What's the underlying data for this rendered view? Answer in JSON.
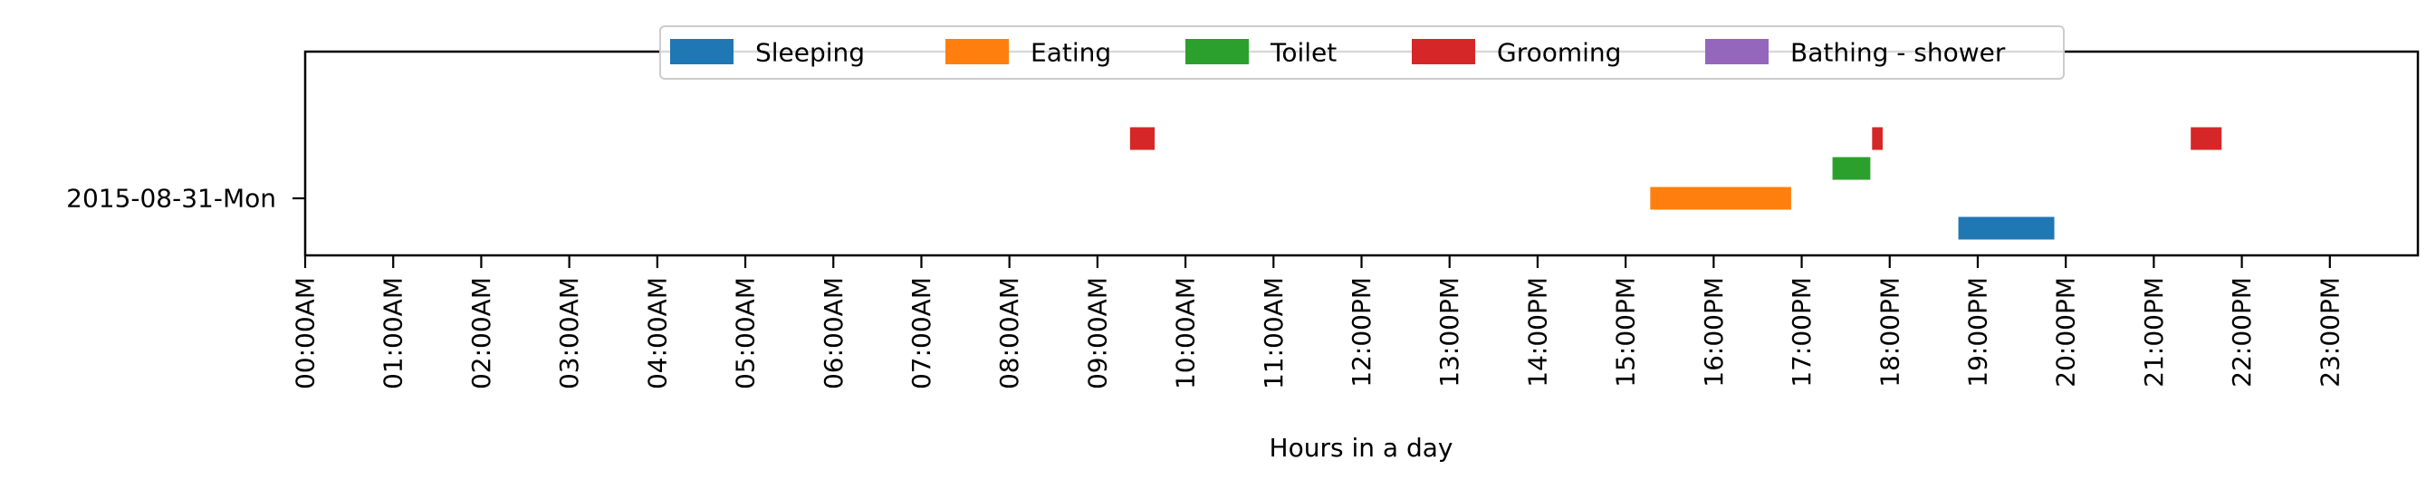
{
  "chart_data": {
    "type": "timeline",
    "xlabel": "Hours in a day",
    "xlim": [
      0,
      24
    ],
    "x_ticks": [
      {
        "value": 0,
        "label": "00:00AM"
      },
      {
        "value": 1,
        "label": "01:00AM"
      },
      {
        "value": 2,
        "label": "02:00AM"
      },
      {
        "value": 3,
        "label": "03:00AM"
      },
      {
        "value": 4,
        "label": "04:00AM"
      },
      {
        "value": 5,
        "label": "05:00AM"
      },
      {
        "value": 6,
        "label": "06:00AM"
      },
      {
        "value": 7,
        "label": "07:00AM"
      },
      {
        "value": 8,
        "label": "08:00AM"
      },
      {
        "value": 9,
        "label": "09:00AM"
      },
      {
        "value": 10,
        "label": "10:00AM"
      },
      {
        "value": 11,
        "label": "11:00AM"
      },
      {
        "value": 12,
        "label": "12:00PM"
      },
      {
        "value": 13,
        "label": "13:00PM"
      },
      {
        "value": 14,
        "label": "14:00PM"
      },
      {
        "value": 15,
        "label": "15:00PM"
      },
      {
        "value": 16,
        "label": "16:00PM"
      },
      {
        "value": 17,
        "label": "17:00PM"
      },
      {
        "value": 18,
        "label": "18:00PM"
      },
      {
        "value": 19,
        "label": "19:00PM"
      },
      {
        "value": 20,
        "label": "20:00PM"
      },
      {
        "value": 21,
        "label": "21:00PM"
      },
      {
        "value": 22,
        "label": "22:00PM"
      },
      {
        "value": 23,
        "label": "23:00PM"
      }
    ],
    "days": [
      "2015-08-31-Mon"
    ],
    "legend": {
      "placement": "upper-center",
      "ncol": 5
    },
    "series": [
      {
        "name": "Sleeping",
        "color": "#1f77b4",
        "intervals": [
          [
            18.78,
            19.87
          ]
        ]
      },
      {
        "name": "Eating",
        "color": "#ff7f0e",
        "intervals": [
          [
            15.28,
            16.88
          ]
        ]
      },
      {
        "name": "Toilet",
        "color": "#2ca02c",
        "intervals": [
          [
            17.35,
            17.78
          ]
        ]
      },
      {
        "name": "Grooming",
        "color": "#d62728",
        "intervals": [
          [
            9.37,
            9.65
          ],
          [
            17.8,
            17.92
          ],
          [
            21.42,
            21.77
          ]
        ]
      },
      {
        "name": "Bathing - shower",
        "color": "#9467bd",
        "intervals": []
      }
    ]
  }
}
